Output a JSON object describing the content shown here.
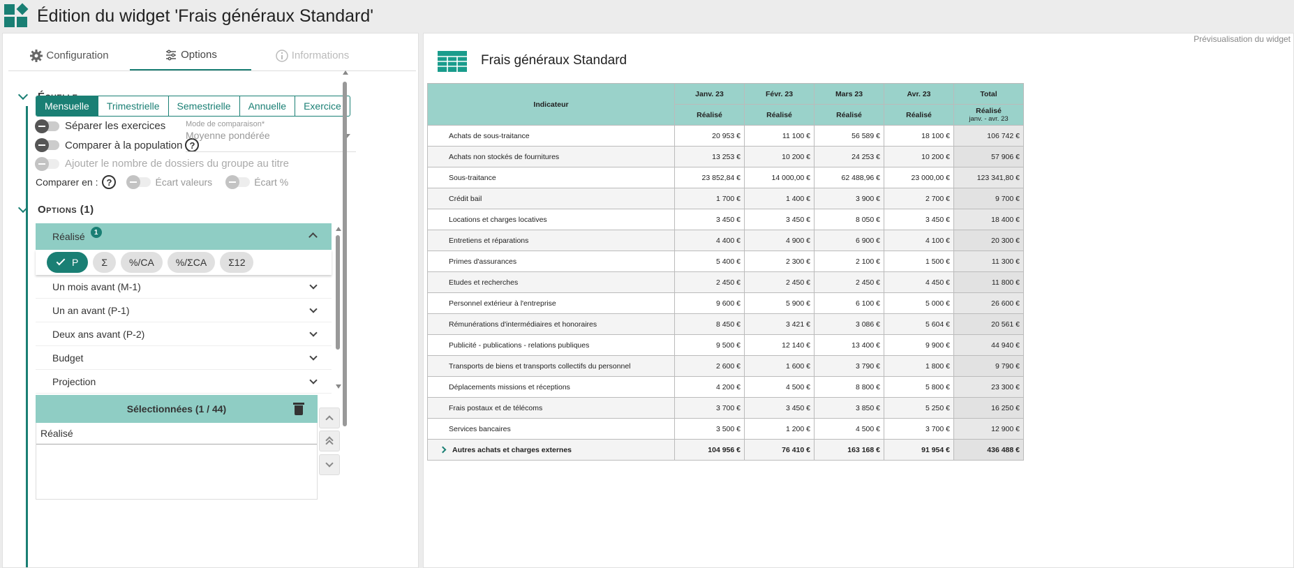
{
  "header": {
    "title": "Édition du widget 'Frais généraux Standard'",
    "logo_icon": "dashboard-logo-icon"
  },
  "tabs": [
    {
      "label": "Configuration",
      "icon": "gear-icon",
      "state": "normal"
    },
    {
      "label": "Options",
      "icon": "sliders-icon",
      "state": "active"
    },
    {
      "label": "Informations",
      "icon": "info-icon",
      "state": "disabled"
    }
  ],
  "echelle": {
    "title": "Échelle",
    "segments": [
      "Mensuelle",
      "Trimestrielle",
      "Semestrielle",
      "Annuelle",
      "Exercice"
    ],
    "selected": "Mensuelle",
    "separer": "Séparer les exercices",
    "comparer_pop": "Comparer à la population",
    "ajouter": "Ajouter le nombre de dossiers du groupe au titre",
    "comparer_en": "Comparer en :",
    "ecart_valeurs": "Écart valeurs",
    "ecart_pct": "Écart %",
    "mode_label": "Mode de comparaison*",
    "mode_value": "Moyenne pondérée"
  },
  "options": {
    "title": "Options (1)",
    "accordion_title": "Réalisé",
    "badge": "1",
    "chips": [
      "P",
      "Σ",
      "%/CA",
      "%/ΣCA",
      "Σ12"
    ],
    "items": [
      "Un mois avant (M-1)",
      "Un an avant (P-1)",
      "Deux ans avant (P-2)",
      "Budget",
      "Projection"
    ]
  },
  "selected": {
    "title": "Sélectionnées (1 / 44)",
    "rows": [
      "Réalisé"
    ]
  },
  "preview": {
    "label": "Prévisualisation du widget",
    "title": "Frais généraux Standard",
    "indicator_header": "Indicateur",
    "months": [
      "Janv. 23",
      "Févr. 23",
      "Mars 23",
      "Avr. 23"
    ],
    "total_header": "Total",
    "sub_header": "Réalisé",
    "total_sub_range": "janv. - avr. 23",
    "rows": [
      {
        "label": "Achats de sous-traitance",
        "values": [
          "20 953 €",
          "11 100 €",
          "56 589 €",
          "18 100 €"
        ],
        "total": "106 742 €"
      },
      {
        "label": "Achats non stockés de fournitures",
        "values": [
          "13 253 €",
          "10 200 €",
          "24 253 €",
          "10 200 €"
        ],
        "total": "57 906 €"
      },
      {
        "label": "Sous-traitance",
        "values": [
          "23 852,84 €",
          "14 000,00 €",
          "62 488,96 €",
          "23 000,00 €"
        ],
        "total": "123 341,80 €"
      },
      {
        "label": "Crédit bail",
        "values": [
          "1 700 €",
          "1 400 €",
          "3 900 €",
          "2 700 €"
        ],
        "total": "9 700 €"
      },
      {
        "label": "Locations et charges locatives",
        "values": [
          "3 450 €",
          "3 450 €",
          "8 050 €",
          "3 450 €"
        ],
        "total": "18 400 €"
      },
      {
        "label": "Entretiens et réparations",
        "values": [
          "4 400 €",
          "4 900 €",
          "6 900 €",
          "4 100 €"
        ],
        "total": "20 300 €"
      },
      {
        "label": "Primes d'assurances",
        "values": [
          "5 400 €",
          "2 300 €",
          "2 100 €",
          "1 500 €"
        ],
        "total": "11 300 €"
      },
      {
        "label": "Etudes et recherches",
        "values": [
          "2 450 €",
          "2 450 €",
          "2 450 €",
          "4 450 €"
        ],
        "total": "11 800 €"
      },
      {
        "label": "Personnel extérieur à l'entreprise",
        "values": [
          "9 600 €",
          "5 900 €",
          "6 100 €",
          "5 000 €"
        ],
        "total": "26 600 €"
      },
      {
        "label": "Rémunérations d'intermédiaires et honoraires",
        "values": [
          "8 450 €",
          "3 421 €",
          "3 086 €",
          "5 604 €"
        ],
        "total": "20 561 €"
      },
      {
        "label": "Publicité - publications - relations publiques",
        "values": [
          "9 500 €",
          "12 140 €",
          "13 400 €",
          "9 900 €"
        ],
        "total": "44 940 €"
      },
      {
        "label": "Transports de biens et transports collectifs du personnel",
        "values": [
          "2 600 €",
          "1 600 €",
          "3 790 €",
          "1 800 €"
        ],
        "total": "9 790 €"
      },
      {
        "label": "Déplacements missions et réceptions",
        "values": [
          "4 200 €",
          "4 500 €",
          "8 800 €",
          "5 800 €"
        ],
        "total": "23 300 €"
      },
      {
        "label": "Frais postaux et de télécoms",
        "values": [
          "3 700 €",
          "3 450 €",
          "3 850 €",
          "5 250 €"
        ],
        "total": "16 250 €"
      },
      {
        "label": "Services bancaires",
        "values": [
          "3 500 €",
          "1 200 €",
          "4 500 €",
          "3 700 €"
        ],
        "total": "12 900 €"
      }
    ],
    "summary": {
      "label": "Autres achats et charges externes",
      "values": [
        "104 956 €",
        "76 410 €",
        "163 168 €",
        "91 954 €"
      ],
      "total": "436 488 €"
    }
  },
  "colors": {
    "accent": "#1a7f74",
    "header_fill": "#9ad2ca"
  }
}
